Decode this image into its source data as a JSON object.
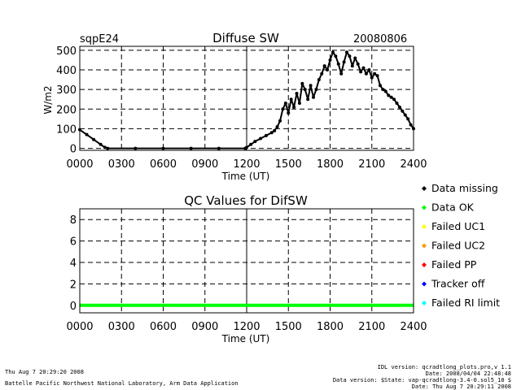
{
  "header": {
    "site": "sqpE24",
    "date": "20080806"
  },
  "chart_data": [
    {
      "type": "scatter",
      "title": "Diffuse SW",
      "xlabel": "Time (UT)",
      "ylabel": "W/m2",
      "x_ticks": [
        "0000",
        "0300",
        "0600",
        "0900",
        "1200",
        "1500",
        "1800",
        "2100",
        "2400"
      ],
      "x_tick_values": [
        0,
        3,
        6,
        9,
        12,
        15,
        18,
        21,
        24
      ],
      "y_ticks": [
        "0",
        "100",
        "200",
        "300",
        "400",
        "500"
      ],
      "y_tick_values": [
        0,
        100,
        200,
        300,
        400,
        500
      ],
      "xlim": [
        0,
        24
      ],
      "ylim": [
        -10,
        520
      ],
      "grid": true,
      "series": [
        {
          "color": "#000000",
          "x": [
            0,
            0.5,
            1,
            1.5,
            1.8,
            2,
            4,
            6,
            8,
            10,
            11.9,
            12.0,
            12.3,
            12.6,
            13,
            13.4,
            13.8,
            14.0,
            14.2,
            14.4,
            14.6,
            14.8,
            15.0,
            15.2,
            15.4,
            15.6,
            15.8,
            16.0,
            16.2,
            16.4,
            16.6,
            16.8,
            17.0,
            17.2,
            17.4,
            17.6,
            17.8,
            18.0,
            18.2,
            18.4,
            18.6,
            18.8,
            19.0,
            19.2,
            19.4,
            19.6,
            19.8,
            20.0,
            20.2,
            20.4,
            20.6,
            20.8,
            21.0,
            21.2,
            21.4,
            21.6,
            21.8,
            22.0,
            22.2,
            22.4,
            22.6,
            22.8,
            23.0,
            23.2,
            23.4,
            23.6,
            23.8,
            24.0
          ],
          "y": [
            95,
            70,
            45,
            20,
            5,
            0,
            0,
            0,
            0,
            0,
            0,
            5,
            20,
            35,
            50,
            65,
            80,
            90,
            110,
            140,
            200,
            230,
            180,
            250,
            210,
            280,
            230,
            330,
            300,
            250,
            320,
            260,
            300,
            350,
            380,
            420,
            400,
            450,
            490,
            470,
            430,
            380,
            440,
            490,
            470,
            420,
            460,
            430,
            390,
            410,
            380,
            400,
            360,
            380,
            370,
            320,
            300,
            290,
            270,
            260,
            250,
            230,
            210,
            190,
            170,
            150,
            120,
            100
          ]
        }
      ]
    },
    {
      "type": "line",
      "title": "QC Values for DifSW",
      "xlabel": "Time (UT)",
      "x_ticks": [
        "0000",
        "0300",
        "0600",
        "0900",
        "1200",
        "1500",
        "1800",
        "2100",
        "2400"
      ],
      "x_tick_values": [
        0,
        3,
        6,
        9,
        12,
        15,
        18,
        21,
        24
      ],
      "y_ticks": [
        "0",
        "2",
        "4",
        "6",
        "8"
      ],
      "y_tick_values": [
        0,
        2,
        4,
        6,
        8
      ],
      "xlim": [
        0,
        24
      ],
      "ylim": [
        -0.7,
        9
      ],
      "grid": true,
      "series": [
        {
          "color": "#00ff00",
          "x": [
            0,
            24
          ],
          "y": [
            0,
            0
          ]
        }
      ]
    }
  ],
  "legend": {
    "placement": "right",
    "items": [
      {
        "label": "Data missing",
        "color": "#000000"
      },
      {
        "label": "Data OK",
        "color": "#00ff00"
      },
      {
        "label": "Failed UC1",
        "color": "#ffff00"
      },
      {
        "label": "Failed UC2",
        "color": "#ff9900"
      },
      {
        "label": "Failed PP",
        "color": "#ff0000"
      },
      {
        "label": "Tracker off",
        "color": "#0000ff"
      },
      {
        "label": "Failed RI limit",
        "color": "#00ffff"
      }
    ]
  },
  "footer": {
    "run_date": "Thu Aug  7 20:29:20 2008",
    "lab": "Battelle Pacific Northwest National Laboratory, Arm Data Application",
    "idl_version": "IDL version: qcradtlong_plots.pro,v 1.1",
    "idl_date": "Date: 2008/04/04 22:48:48",
    "data_version": "Data version: $State: vap-qcradtlong-3.4-0.sol5_10 $",
    "data_date": "Date: Thu Aug  7 20:29:11 2008"
  }
}
